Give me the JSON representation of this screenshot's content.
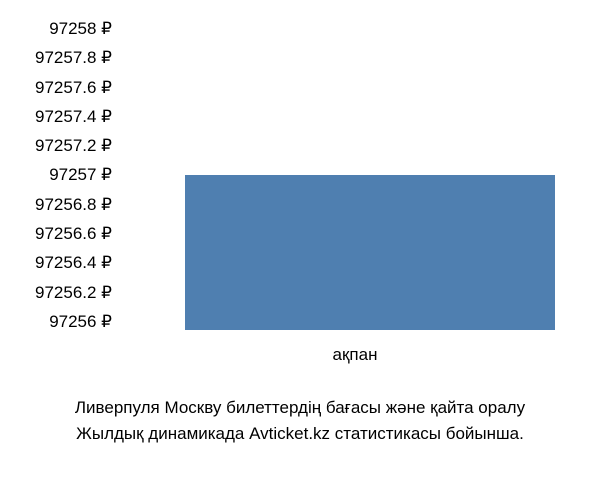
{
  "chart": {
    "type": "bar",
    "background_color": "#ffffff",
    "bar_color": "#4f7fb0",
    "text_color": "#000000",
    "label_fontsize": 17,
    "caption_fontsize": 17,
    "ylim": [
      97256,
      97258
    ],
    "ytick_step": 0.2,
    "y_ticks": [
      "97258 ₽",
      "97257.8 ₽",
      "97257.6 ₽",
      "97257.4 ₽",
      "97257.2 ₽",
      "97257 ₽",
      "97256.8 ₽",
      "97256.6 ₽",
      "97256.4 ₽",
      "97256.2 ₽",
      "97256 ₽"
    ],
    "categories": [
      "ақпан"
    ],
    "values": [
      97257
    ],
    "bar_width": 0.8,
    "bar_top_percent": 50,
    "bar_height_percent": 50
  },
  "caption": {
    "line1": "Ливерпуля Москву билеттердің бағасы және қайта оралу",
    "line2": "Жылдық динамикада Avticket.kz статистикасы бойынша."
  }
}
